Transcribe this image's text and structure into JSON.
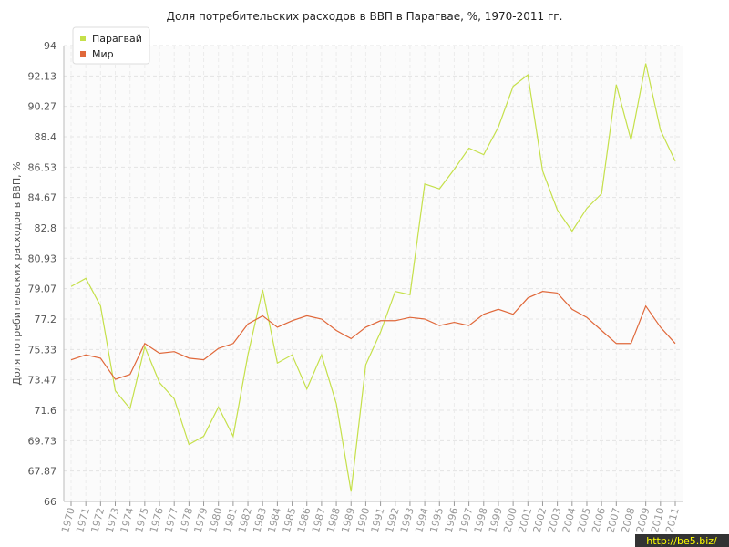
{
  "chart_data": {
    "type": "line",
    "title": "Доля потребительских расходов в ВВП в Парагвае, %, 1970-2011 гг.",
    "y_label": "Доля потребительских расходов в ВВП, %",
    "watermark": "http://be5.biz/",
    "x": [
      1970,
      1971,
      1972,
      1973,
      1974,
      1975,
      1976,
      1977,
      1978,
      1979,
      1980,
      1981,
      1982,
      1983,
      1984,
      1985,
      1986,
      1987,
      1988,
      1989,
      1990,
      1991,
      1992,
      1993,
      1994,
      1995,
      1996,
      1997,
      1998,
      1999,
      2000,
      2001,
      2002,
      2003,
      2004,
      2005,
      2006,
      2007,
      2008,
      2009,
      2010,
      2011
    ],
    "xlim": [
      1970,
      2011
    ],
    "series": [
      {
        "name": "Парагвай",
        "color": "#c5e04a",
        "values": [
          79.2,
          79.7,
          78.0,
          72.8,
          71.7,
          75.5,
          73.3,
          72.3,
          69.5,
          70.0,
          71.8,
          70.0,
          75.0,
          79.0,
          74.5,
          75.0,
          72.9,
          75.0,
          72.0,
          66.6,
          74.4,
          76.4,
          78.9,
          78.7,
          85.5,
          85.2,
          86.4,
          87.7,
          87.3,
          89.0,
          91.5,
          92.2,
          86.3,
          83.9,
          82.6,
          84.0,
          84.9,
          91.6,
          88.2,
          92.9,
          88.8,
          86.9
        ]
      },
      {
        "name": "Мир",
        "color": "#e0683a",
        "values": [
          74.7,
          75.0,
          74.8,
          73.5,
          73.8,
          75.7,
          75.1,
          75.2,
          74.8,
          74.7,
          75.4,
          75.7,
          76.9,
          77.4,
          76.7,
          77.1,
          77.4,
          77.2,
          76.5,
          76.0,
          76.7,
          77.1,
          77.1,
          77.3,
          77.2,
          76.8,
          77.0,
          76.8,
          77.5,
          77.8,
          77.5,
          78.5,
          78.9,
          78.8,
          77.8,
          77.3,
          76.5,
          75.7,
          75.7,
          78.0,
          76.7,
          75.7
        ]
      }
    ],
    "ylim": [
      66,
      94
    ],
    "yticks": [
      66,
      67.87,
      69.73,
      71.6,
      73.47,
      75.33,
      77.2,
      79.07,
      80.93,
      82.8,
      84.67,
      86.53,
      88.4,
      90.27,
      92.13,
      94
    ],
    "grid": true
  }
}
